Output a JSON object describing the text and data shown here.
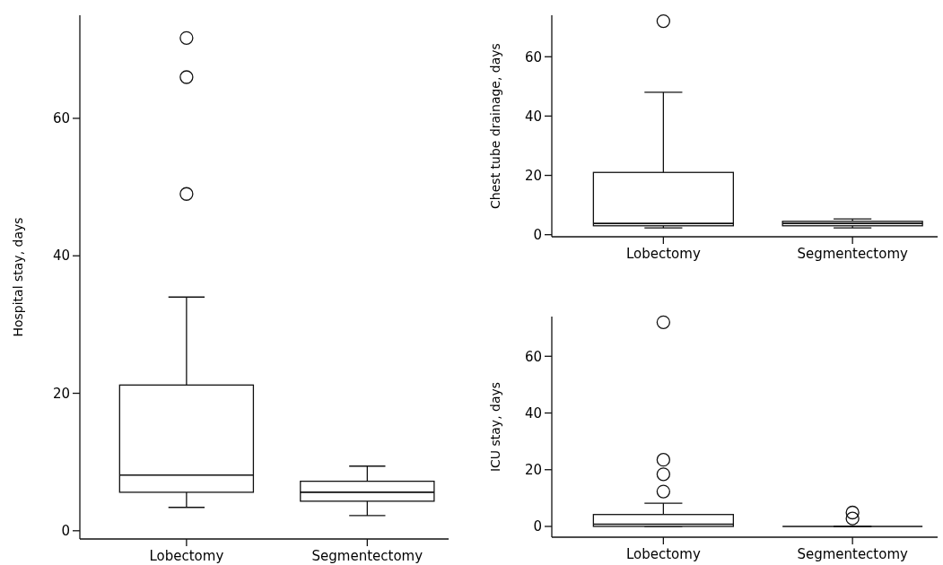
{
  "chart_data": [
    {
      "type": "box",
      "ylabel": "Hospital stay, days",
      "categories": [
        "Lobectomy",
        "Segmentectomy"
      ],
      "ylim": [
        -1.2,
        75
      ],
      "yticks": [
        0,
        20,
        40,
        60
      ],
      "boxes": [
        {
          "low": 3.4,
          "q1": 5.6,
          "median": 8.1,
          "q3": 21.2,
          "high": 34,
          "outliers": [
            49,
            66,
            71.7
          ]
        },
        {
          "low": 2.2,
          "q1": 4.3,
          "median": 5.6,
          "q3": 7.2,
          "high": 9.4
        }
      ]
    },
    {
      "type": "box",
      "ylabel": "Chest tube drainage, days",
      "categories": [
        "Lobectomy",
        "Segmentectomy"
      ],
      "ylim": [
        -0.7,
        74
      ],
      "yticks": [
        0,
        20,
        40,
        60
      ],
      "boxes": [
        {
          "low": 2.3,
          "q1": 3,
          "median": 3.8,
          "q3": 21,
          "high": 48,
          "outliers": [
            72
          ]
        },
        {
          "low": 2.3,
          "q1": 3,
          "median": 3.8,
          "q3": 4.5,
          "high": 5.3
        }
      ]
    },
    {
      "type": "box",
      "ylabel": "ICU stay, days",
      "categories": [
        "Lobectomy",
        "Segmentectomy"
      ],
      "ylim": [
        -3.8,
        74
      ],
      "yticks": [
        0,
        20,
        40,
        60
      ],
      "boxes": [
        {
          "low": 0,
          "q1": 0,
          "median": 0.8,
          "q3": 4.2,
          "high": 8.2,
          "outliers": [
            12.3,
            18.4,
            23.5,
            72
          ]
        },
        {
          "low": 0,
          "q1": 0,
          "median": 0,
          "q3": 0,
          "high": 0,
          "outliers": [
            2.8,
            4.9
          ]
        }
      ]
    }
  ]
}
